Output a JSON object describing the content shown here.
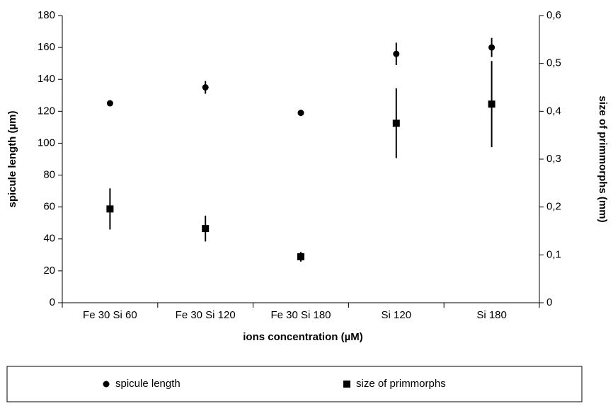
{
  "chart_data": {
    "type": "scatter",
    "x_label": "ions concentration (µM)",
    "y_label": "spicule length (µm)",
    "y2_label": "size of primmorphs (mm)",
    "categories": [
      "Fe 30 Si 60",
      "Fe 30 Si 120",
      "Fe 30 Si 180",
      "Si 120",
      "Si 180"
    ],
    "series": [
      {
        "name": "spicule length",
        "color": "#000000",
        "marker": "circle",
        "values": [
          125,
          135,
          119,
          156,
          160
        ],
        "errors": [
          1,
          4,
          2,
          7,
          6
        ]
      },
      {
        "name": "size of primmorphs",
        "color": "#000000",
        "marker": "square",
        "axis": "y2",
        "values": [
          0.196,
          0.155,
          0.096,
          0.375,
          0.415
        ],
        "errors": [
          0.043,
          0.027,
          0.01,
          0.073,
          0.09
        ]
      }
    ],
    "ylim": [
      0,
      180
    ],
    "yticks": [
      0,
      20,
      40,
      60,
      80,
      100,
      120,
      140,
      160,
      180
    ],
    "y2lim": [
      0,
      0.6
    ],
    "y2ticks": [
      0,
      {
        "value": 0.1,
        "label": "0,1"
      },
      {
        "value": 0.2,
        "label": "0,2"
      },
      {
        "value": 0.3,
        "label": "0,3"
      },
      {
        "value": 0.4,
        "label": "0,4"
      },
      {
        "value": 0.5,
        "label": "0,5"
      },
      {
        "value": 0.6,
        "label": "0,6"
      }
    ],
    "legend": "bottom"
  }
}
